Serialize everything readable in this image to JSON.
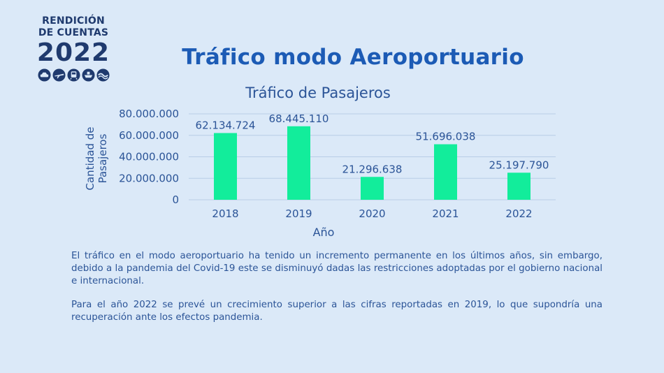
{
  "logo": {
    "line1": "RENDICIÓN",
    "line2": "DE CUENTAS",
    "year": "2022",
    "icons": [
      "car-icon",
      "plane-icon",
      "train-icon",
      "ship-icon",
      "wave-icon"
    ]
  },
  "slide": {
    "title": "Tráfico modo Aeroportuario",
    "paragraphs": [
      "El tráfico en el modo aeroportuario ha tenido un incremento permanente en los últimos años, sin embargo, debido a la pandemia del Covid-19 este se disminuyó dadas las restricciones adoptadas por el gobierno nacional e internacional.",
      "Para el año 2022 se prevé un crecimiento superior a las cifras reportadas en 2019, lo que supondría una recuperación ante los efectos pandemia."
    ]
  },
  "colors": {
    "bar": "#12ed9b",
    "title": "#1c5bb5",
    "text": "#2b5497",
    "grid": "#b8cde6"
  },
  "chart_data": {
    "type": "bar",
    "title": "Tráfico de Pasajeros",
    "xlabel": "Año",
    "ylabel": "Cantidad de Pasajeros",
    "categories": [
      "2018",
      "2019",
      "2020",
      "2021",
      "2022"
    ],
    "values": [
      62134724,
      68445110,
      21296638,
      51696038,
      25197790
    ],
    "data_labels": [
      "62.134.724",
      "68.445.110",
      "21.296.638",
      "51.696.038",
      "25.197.790"
    ],
    "yticks": [
      0,
      20000000,
      40000000,
      60000000,
      80000000
    ],
    "ytick_labels": [
      "0",
      "20.000.000",
      "40.000.000",
      "60.000.000",
      "80.000.000"
    ],
    "ylim": [
      0,
      80000000
    ],
    "grid": true,
    "legend": "none"
  }
}
